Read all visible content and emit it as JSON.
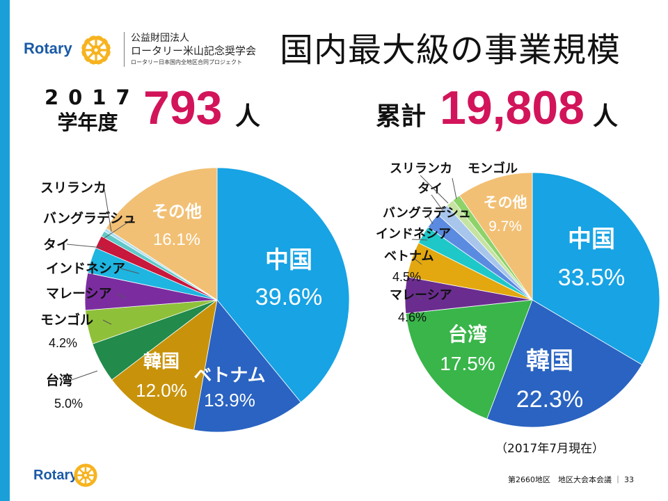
{
  "org": {
    "rotary_word": "Rotary",
    "line1": "公益財団法人",
    "line2": "ロータリー米山記念奨学会",
    "line3": "ロータリー日本国内全地区合同プロジェクト"
  },
  "title": "国内最大級の事業規模",
  "year_block": {
    "label_line1": "2017",
    "label_line2": "学年度",
    "count": "793",
    "unit": "人"
  },
  "total_block": {
    "label": "累計",
    "count": "19,808",
    "unit": "人"
  },
  "chart_data": [
    {
      "type": "pie",
      "title": "",
      "slices": [
        {
          "label": "中国",
          "value": 39.6,
          "value_text": "39.6%",
          "color": "#17a3e4"
        },
        {
          "label": "ベトナム",
          "value": 13.9,
          "value_text": "13.9%",
          "color": "#2a63c1"
        },
        {
          "label": "韓国",
          "value": 12.0,
          "value_text": "12.0%",
          "color": "#c8930b"
        },
        {
          "label": "台湾",
          "value": 5.0,
          "value_text": "5.0%",
          "color": "#228a4a"
        },
        {
          "label": "モンゴル",
          "value": 4.2,
          "value_text": "4.2%",
          "color": "#8fc03a"
        },
        {
          "label": "マレーシア",
          "value": 4.6,
          "value_text": "",
          "color": "#7b2da0"
        },
        {
          "label": "インドネシア",
          "value": 3.2,
          "value_text": "",
          "color": "#1eb5e0"
        },
        {
          "label": "タイ",
          "value": 1.6,
          "value_text": "",
          "color": "#c8183c"
        },
        {
          "label": "バングラデシュ",
          "value": 0.7,
          "value_text": "",
          "color": "#60c8c8"
        },
        {
          "label": "スリランカ",
          "value": 0.4,
          "value_text": "",
          "color": "#b0dff0"
        },
        {
          "label": "その他",
          "value": 16.1,
          "value_text": "16.1%",
          "color": "#f2c074"
        }
      ]
    },
    {
      "type": "pie",
      "title": "",
      "slices": [
        {
          "label": "中国",
          "value": 33.5,
          "value_text": "33.5%",
          "color": "#17a3e4"
        },
        {
          "label": "韓国",
          "value": 22.3,
          "value_text": "22.3%",
          "color": "#2a63c1"
        },
        {
          "label": "台湾",
          "value": 17.5,
          "value_text": "17.5%",
          "color": "#39b54a"
        },
        {
          "label": "マレーシア",
          "value": 4.6,
          "value_text": "4.6%",
          "color": "#6a2d8f"
        },
        {
          "label": "ベトナム",
          "value": 4.5,
          "value_text": "4.5%",
          "color": "#e3a80f"
        },
        {
          "label": "インドネシア",
          "value": 2.3,
          "value_text": "",
          "color": "#1ec8c8"
        },
        {
          "label": "バングラデシュ",
          "value": 2.0,
          "value_text": "",
          "color": "#5b8be0"
        },
        {
          "label": "タイ",
          "value": 1.6,
          "value_text": "",
          "color": "#a8c6ec"
        },
        {
          "label": "スリランカ",
          "value": 1.0,
          "value_text": "",
          "color": "#c6e3a2"
        },
        {
          "label": "モンゴル",
          "value": 1.0,
          "value_text": "",
          "color": "#8dd36a"
        },
        {
          "label": "その他",
          "value": 9.7,
          "value_text": "9.7%",
          "color": "#f2c074"
        }
      ]
    }
  ],
  "as_of": "（2017年7月現在）",
  "footer": {
    "text": "第2660地区　地区大会本会議 ｜ 33"
  },
  "colors": {
    "sidebar": "#1a9fd9",
    "accent": "#d2145a"
  }
}
